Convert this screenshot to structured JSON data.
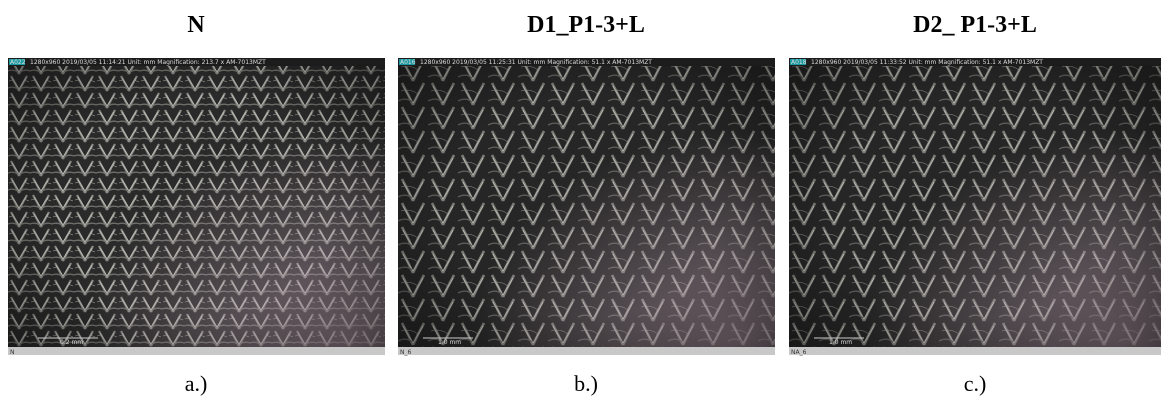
{
  "panels": [
    {
      "title": "N",
      "caption": "a.)",
      "id": "A022",
      "info": "1280x960  2019/03/05 11:14:21  Unit: mm  Magnification: 213.7 x  AM-7013MZT",
      "scale": "0.2 mm",
      "footer": "N"
    },
    {
      "title": "D1_P1-3+L",
      "caption": "b.)",
      "id": "A016",
      "info": "1280x960  2019/03/05 11:25:31  Unit: mm  Magnification: 51.1 x  AM-7013MZT",
      "scale": "1.0 mm",
      "footer": "N_6"
    },
    {
      "title": "D2_ P1-3+L",
      "caption": "c.)",
      "id": "A018",
      "info": "1280x960  2019/03/05 11:33:52  Unit: mm  Magnification: 51.1 x  AM-7013MZT",
      "scale": "1.0 mm",
      "footer": "NA_6"
    }
  ]
}
